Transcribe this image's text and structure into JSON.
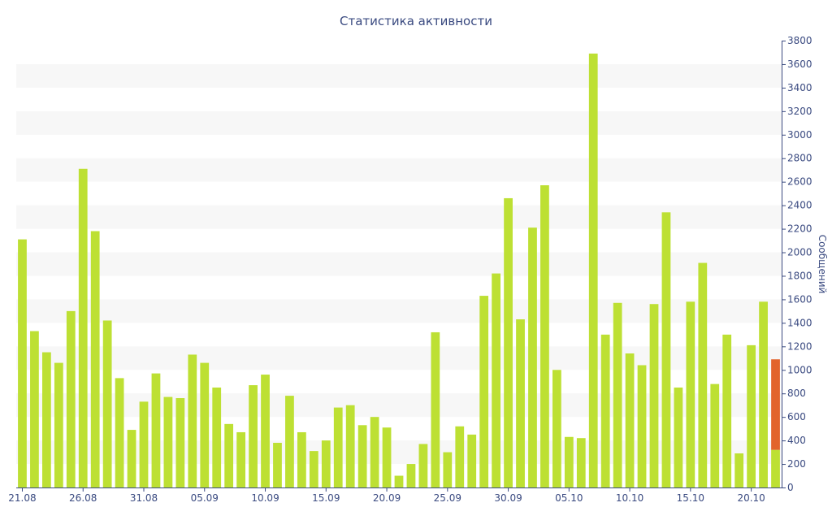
{
  "chart_data": {
    "type": "bar",
    "title": "Статистика активности",
    "xlabel": "",
    "ylabel": "Сообщений",
    "ylim": [
      0,
      3800
    ],
    "y_ticks": [
      0,
      200,
      400,
      600,
      800,
      1000,
      1200,
      1400,
      1600,
      1800,
      2000,
      2200,
      2400,
      2600,
      2800,
      3000,
      3200,
      3400,
      3600,
      3800
    ],
    "x_tick_labels": [
      {
        "index": 0,
        "label": "21.08"
      },
      {
        "index": 5,
        "label": "26.08"
      },
      {
        "index": 10,
        "label": "31.08"
      },
      {
        "index": 15,
        "label": "05.09"
      },
      {
        "index": 20,
        "label": "10.09"
      },
      {
        "index": 25,
        "label": "15.09"
      },
      {
        "index": 30,
        "label": "20.09"
      },
      {
        "index": 35,
        "label": "25.09"
      },
      {
        "index": 40,
        "label": "30.09"
      },
      {
        "index": 45,
        "label": "05.10"
      },
      {
        "index": 50,
        "label": "10.10"
      },
      {
        "index": 55,
        "label": "15.10"
      },
      {
        "index": 60,
        "label": "20.10"
      }
    ],
    "values": [
      2110,
      1330,
      1150,
      1060,
      1500,
      2710,
      2180,
      1420,
      930,
      490,
      730,
      970,
      770,
      760,
      1130,
      1060,
      850,
      540,
      470,
      870,
      960,
      380,
      780,
      470,
      310,
      400,
      680,
      700,
      530,
      600,
      510,
      100,
      200,
      370,
      1320,
      300,
      520,
      450,
      1630,
      1820,
      2460,
      1430,
      2210,
      2570,
      1000,
      430,
      420,
      3690,
      1300,
      1570,
      1140,
      1040,
      1560,
      2340,
      850,
      1580,
      1910,
      880,
      1300,
      290,
      1210,
      1580,
      1090
    ],
    "highlight": {
      "index": 62,
      "value": 1090,
      "lower_value": 320
    },
    "colors": {
      "bar": "#bde033",
      "highlight": "#e2642c",
      "band": "#f7f7f7",
      "axis": "#3a4a80"
    },
    "grid": "alternating horizontal bands",
    "legend": "none"
  }
}
